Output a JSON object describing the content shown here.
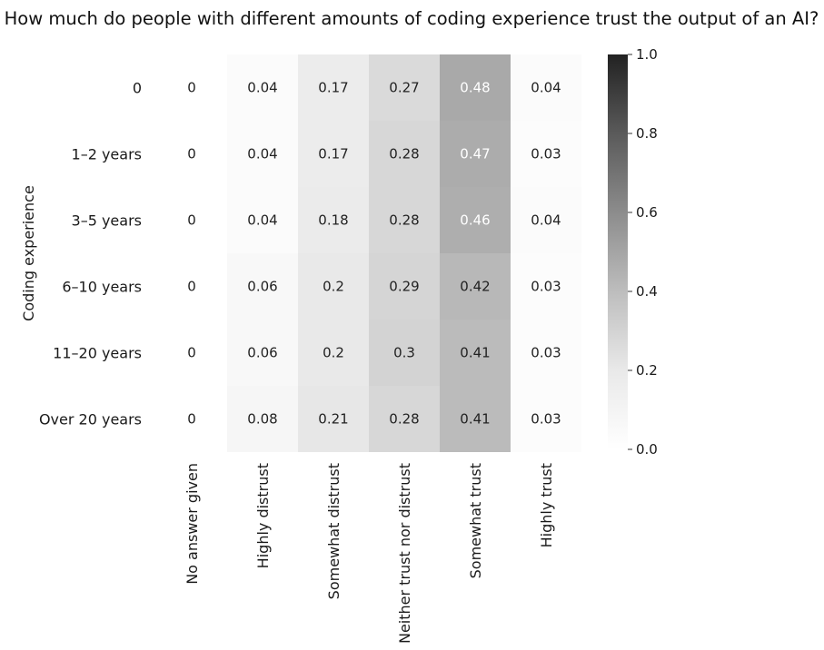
{
  "chart_data": {
    "type": "heatmap",
    "title": "How much do people with different amounts of coding experience trust the output of an AI?",
    "xlabel": "",
    "ylabel": "Coding experience",
    "x_categories": [
      "No answer given",
      "Highly distrust",
      "Somewhat distrust",
      "Neither trust nor distrust",
      "Somewhat trust",
      "Highly trust"
    ],
    "y_categories": [
      "0",
      "1–2 years",
      "3–5 years",
      "6–10 years",
      "11–20 years",
      "Over 20 years"
    ],
    "values": [
      [
        0,
        0.04,
        0.17,
        0.27,
        0.48,
        0.04
      ],
      [
        0,
        0.04,
        0.17,
        0.28,
        0.47,
        0.03
      ],
      [
        0,
        0.04,
        0.18,
        0.28,
        0.46,
        0.04
      ],
      [
        0,
        0.06,
        0.2,
        0.29,
        0.42,
        0.03
      ],
      [
        0,
        0.06,
        0.2,
        0.3,
        0.41,
        0.03
      ],
      [
        0,
        0.08,
        0.21,
        0.28,
        0.41,
        0.03
      ]
    ],
    "colorbar": {
      "range": [
        0.0,
        1.0
      ],
      "ticks": [
        "0.0",
        "0.2",
        "0.4",
        "0.6",
        "0.8",
        "1.0"
      ],
      "colors": [
        "#ffffff",
        "#e9e9e9",
        "#bdbdbd",
        "#8c8c8c",
        "#5a5a5a",
        "#222222"
      ]
    }
  }
}
